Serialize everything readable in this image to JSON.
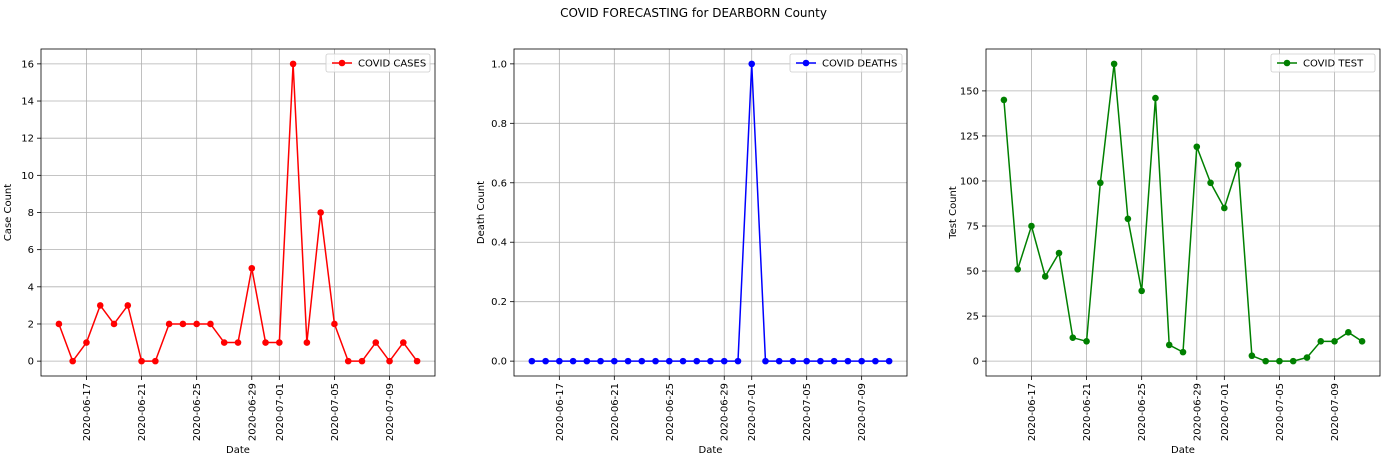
{
  "suptitle": "COVID FORECASTING for DEARBORN County",
  "chart_data": [
    {
      "type": "line",
      "xlabel": "Date",
      "ylabel": "Case Count",
      "color": "#ff0000",
      "legend": "top-right",
      "grid": true,
      "ylim": [
        -0.8,
        16.8
      ],
      "yticks": [
        0,
        2,
        4,
        6,
        8,
        10,
        12,
        14,
        16
      ],
      "xtick_labels": [
        "2020-06-17",
        "2020-06-21",
        "2020-06-25",
        "2020-06-29",
        "2020-07-01",
        "2020-07-05",
        "2020-07-09"
      ],
      "series": [
        {
          "name": "COVID CASES",
          "x": [
            "2020-06-15",
            "2020-06-16",
            "2020-06-17",
            "2020-06-18",
            "2020-06-19",
            "2020-06-20",
            "2020-06-21",
            "2020-06-22",
            "2020-06-23",
            "2020-06-24",
            "2020-06-25",
            "2020-06-26",
            "2020-06-27",
            "2020-06-28",
            "2020-06-29",
            "2020-06-30",
            "2020-07-01",
            "2020-07-02",
            "2020-07-03",
            "2020-07-04",
            "2020-07-05",
            "2020-07-06",
            "2020-07-07",
            "2020-07-08",
            "2020-07-09",
            "2020-07-10",
            "2020-07-11"
          ],
          "values": [
            2,
            0,
            1,
            3,
            2,
            3,
            0,
            0,
            2,
            2,
            2,
            2,
            1,
            1,
            5,
            1,
            1,
            16,
            1,
            8,
            2,
            0,
            0,
            1,
            0,
            1,
            0
          ]
        }
      ]
    },
    {
      "type": "line",
      "xlabel": "Date",
      "ylabel": "Death Count",
      "color": "#0000ff",
      "legend": "top-right",
      "grid": true,
      "ylim": [
        -0.05,
        1.05
      ],
      "yticks": [
        0.0,
        0.2,
        0.4,
        0.6,
        0.8,
        1.0
      ],
      "xtick_labels": [
        "2020-06-17",
        "2020-06-21",
        "2020-06-25",
        "2020-06-29",
        "2020-07-01",
        "2020-07-05",
        "2020-07-09"
      ],
      "series": [
        {
          "name": "COVID DEATHS",
          "x": [
            "2020-06-15",
            "2020-06-16",
            "2020-06-17",
            "2020-06-18",
            "2020-06-19",
            "2020-06-20",
            "2020-06-21",
            "2020-06-22",
            "2020-06-23",
            "2020-06-24",
            "2020-06-25",
            "2020-06-26",
            "2020-06-27",
            "2020-06-28",
            "2020-06-29",
            "2020-06-30",
            "2020-07-01",
            "2020-07-02",
            "2020-07-03",
            "2020-07-04",
            "2020-07-05",
            "2020-07-06",
            "2020-07-07",
            "2020-07-08",
            "2020-07-09",
            "2020-07-10",
            "2020-07-11"
          ],
          "values": [
            0,
            0,
            0,
            0,
            0,
            0,
            0,
            0,
            0,
            0,
            0,
            0,
            0,
            0,
            0,
            0,
            1,
            0,
            0,
            0,
            0,
            0,
            0,
            0,
            0,
            0,
            0
          ]
        }
      ]
    },
    {
      "type": "line",
      "xlabel": "Date",
      "ylabel": "Test Count",
      "color": "#008000",
      "legend": "top-right",
      "grid": true,
      "ylim": [
        -8.25,
        173.25
      ],
      "yticks": [
        0,
        25,
        50,
        75,
        100,
        125,
        150
      ],
      "xtick_labels": [
        "2020-06-17",
        "2020-06-21",
        "2020-06-25",
        "2020-06-29",
        "2020-07-01",
        "2020-07-05",
        "2020-07-09"
      ],
      "series": [
        {
          "name": "COVID TEST",
          "x": [
            "2020-06-15",
            "2020-06-16",
            "2020-06-17",
            "2020-06-18",
            "2020-06-19",
            "2020-06-20",
            "2020-06-21",
            "2020-06-22",
            "2020-06-23",
            "2020-06-24",
            "2020-06-25",
            "2020-06-26",
            "2020-06-27",
            "2020-06-28",
            "2020-06-29",
            "2020-06-30",
            "2020-07-01",
            "2020-07-02",
            "2020-07-03",
            "2020-07-04",
            "2020-07-05",
            "2020-07-06",
            "2020-07-07",
            "2020-07-08",
            "2020-07-09",
            "2020-07-10",
            "2020-07-11"
          ],
          "values": [
            145,
            51,
            75,
            47,
            60,
            13,
            11,
            99,
            165,
            79,
            39,
            146,
            9,
            5,
            119,
            99,
            85,
            109,
            3,
            0,
            0,
            0,
            2,
            11,
            11,
            16,
            11
          ]
        }
      ]
    }
  ]
}
